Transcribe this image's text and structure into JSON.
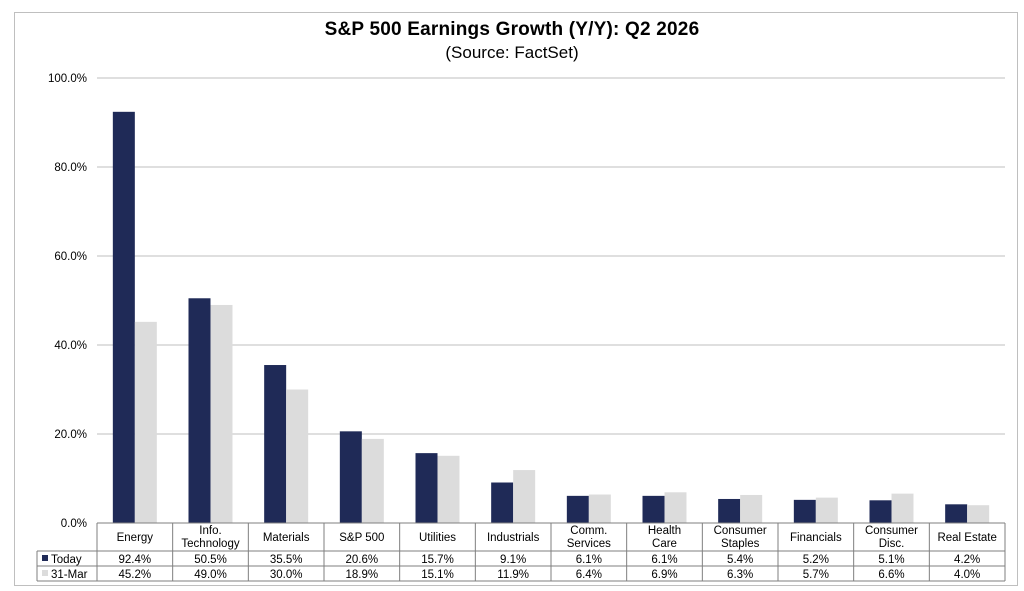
{
  "chart_data": {
    "type": "bar",
    "title": "S&P 500 Earnings Growth (Y/Y): Q2 2026",
    "subtitle": "(Source: FactSet)",
    "categories": [
      [
        "Energy"
      ],
      [
        "Info.",
        "Technology"
      ],
      [
        "Materials"
      ],
      [
        "S&P 500"
      ],
      [
        "Utilities"
      ],
      [
        "Industrials"
      ],
      [
        "Comm.",
        "Services"
      ],
      [
        "Health",
        "Care"
      ],
      [
        "Consumer",
        "Staples"
      ],
      [
        "Financials"
      ],
      [
        "Consumer",
        "Disc."
      ],
      [
        "Real Estate"
      ]
    ],
    "series": [
      {
        "name": "Today",
        "color": "#1f2a57",
        "values": [
          92.4,
          50.5,
          35.5,
          20.6,
          15.7,
          9.1,
          6.1,
          6.1,
          5.4,
          5.2,
          5.1,
          4.2
        ],
        "labels": [
          "92.4%",
          "50.5%",
          "35.5%",
          "20.6%",
          "15.7%",
          "9.1%",
          "6.1%",
          "6.1%",
          "5.4%",
          "5.2%",
          "5.1%",
          "4.2%"
        ]
      },
      {
        "name": "31-Mar",
        "color": "#dcdcdc",
        "values": [
          45.2,
          49.0,
          30.0,
          18.9,
          15.1,
          11.9,
          6.4,
          6.9,
          6.3,
          5.7,
          6.6,
          4.0
        ],
        "labels": [
          "45.2%",
          "49.0%",
          "30.0%",
          "18.9%",
          "15.1%",
          "11.9%",
          "6.4%",
          "6.9%",
          "6.3%",
          "5.7%",
          "6.6%",
          "4.0%"
        ]
      }
    ],
    "yticks": [
      "0.0%",
      "20.0%",
      "40.0%",
      "60.0%",
      "80.0%",
      "100.0%"
    ],
    "ytick_values": [
      0,
      20,
      40,
      60,
      80,
      100
    ],
    "ylim": [
      0,
      100
    ],
    "grid": true,
    "legend": "data-table"
  }
}
